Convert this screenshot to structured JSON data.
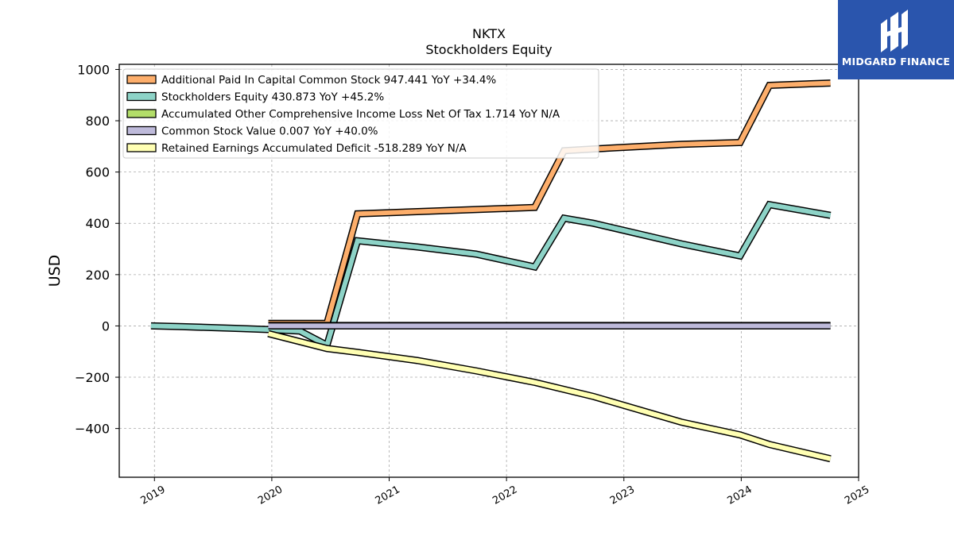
{
  "chart_data": {
    "type": "line",
    "title": "NKTX",
    "subtitle": "Stockholders  Equity",
    "ylabel": "USD",
    "xlabel": "",
    "xlim": [
      2018.7,
      2025.0
    ],
    "ylim": [
      -590,
      1020
    ],
    "x_ticks": [
      "2019",
      "2020",
      "2021",
      "2022",
      "2023",
      "2024",
      "2025"
    ],
    "y_ticks": [
      1000,
      800,
      600,
      400,
      200,
      0,
      -200,
      -400
    ],
    "y_tick_labels": [
      "1000",
      "800",
      "600",
      "400",
      "200",
      "0",
      "−200",
      "−400"
    ],
    "grid": true,
    "legend_position": "upper-left",
    "series": [
      {
        "name": "Additional Paid In Capital Common Stock  947.441 YoY +34.4%",
        "color": "#fdae6b",
        "x": [
          2019.97,
          2020.47,
          2020.73,
          2022.24,
          2022.49,
          2022.74,
          2023.49,
          2023.99,
          2024.24,
          2024.76
        ],
        "y": [
          10,
          10,
          437,
          462,
          683,
          690,
          708,
          715,
          938,
          947
        ]
      },
      {
        "name": "Stockholders Equity  430.873 YoY +45.2%",
        "color": "#8dd3c7",
        "x": [
          2018.97,
          2019.24,
          2019.74,
          2019.97,
          2020.24,
          2020.47,
          2020.73,
          2021.24,
          2021.74,
          2022.24,
          2022.49,
          2022.74,
          2023.49,
          2023.99,
          2024.24,
          2024.76
        ],
        "y": [
          0,
          -3,
          -10,
          -14,
          -20,
          -75,
          332,
          308,
          280,
          230,
          420,
          400,
          320,
          273,
          473,
          431
        ]
      },
      {
        "name": "Accumulated Other Comprehensive Income Loss Net Of Tax  1.714 YoY N/A",
        "color": "#b3de69",
        "x": [
          2019.97,
          2024.76
        ],
        "y": [
          1.7,
          1.7
        ]
      },
      {
        "name": "Common Stock Value  0.007 YoY +40.0%",
        "color": "#bebada",
        "x": [
          2019.97,
          2024.76
        ],
        "y": [
          0,
          0
        ]
      },
      {
        "name": "Retained Earnings Accumulated Deficit  -518.289 YoY N/A",
        "color": "#ffffb3",
        "x": [
          2019.97,
          2020.47,
          2020.73,
          2021.24,
          2021.74,
          2022.24,
          2022.74,
          2023.49,
          2023.99,
          2024.24,
          2024.76
        ],
        "y": [
          -30,
          -88,
          -103,
          -135,
          -175,
          -220,
          -275,
          -375,
          -425,
          -462,
          -518
        ]
      }
    ]
  },
  "logo": {
    "text": "MIDGARD FINANCE"
  }
}
